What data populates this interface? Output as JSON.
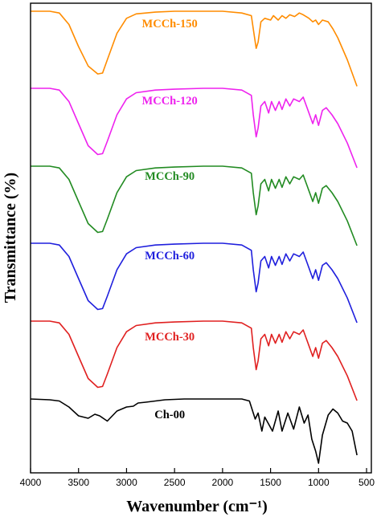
{
  "chart_data": {
    "type": "line",
    "xlabel": "Wavenumber (cm⁻¹)",
    "ylabel": "Transmittance (%)",
    "xlim": [
      4000,
      450
    ],
    "x_reversed": true,
    "y_ticks_shown": false,
    "grid": false,
    "legend": "inline labels next to curves",
    "x_ticks": [
      4000,
      3500,
      3000,
      2500,
      2000,
      1500,
      1000,
      500
    ],
    "x_tick_labels": [
      "4000",
      "3500",
      "3000",
      "2500",
      "2000",
      "1500",
      "1000",
      "500"
    ],
    "series": [
      {
        "name": "MCCh-150",
        "color": "#ff8c00",
        "label_x": 2550,
        "points": [
          [
            4000,
            0
          ],
          [
            3800,
            0
          ],
          [
            3700,
            -0.02
          ],
          [
            3600,
            -0.15
          ],
          [
            3500,
            -0.4
          ],
          [
            3400,
            -0.62
          ],
          [
            3300,
            -0.71
          ],
          [
            3250,
            -0.7
          ],
          [
            3200,
            -0.55
          ],
          [
            3100,
            -0.25
          ],
          [
            3000,
            -0.08
          ],
          [
            2900,
            -0.03
          ],
          [
            2700,
            -0.01
          ],
          [
            2500,
            0
          ],
          [
            2200,
            0
          ],
          [
            2000,
            0
          ],
          [
            1800,
            -0.02
          ],
          [
            1700,
            -0.05
          ],
          [
            1680,
            -0.2
          ],
          [
            1650,
            -0.42
          ],
          [
            1630,
            -0.35
          ],
          [
            1600,
            -0.12
          ],
          [
            1560,
            -0.08
          ],
          [
            1500,
            -0.1
          ],
          [
            1470,
            -0.05
          ],
          [
            1420,
            -0.1
          ],
          [
            1380,
            -0.05
          ],
          [
            1340,
            -0.08
          ],
          [
            1300,
            -0.04
          ],
          [
            1250,
            -0.06
          ],
          [
            1200,
            -0.02
          ],
          [
            1160,
            -0.04
          ],
          [
            1100,
            -0.08
          ],
          [
            1060,
            -0.12
          ],
          [
            1030,
            -0.1
          ],
          [
            1000,
            -0.15
          ],
          [
            960,
            -0.1
          ],
          [
            900,
            -0.12
          ],
          [
            850,
            -0.2
          ],
          [
            800,
            -0.3
          ],
          [
            700,
            -0.55
          ],
          [
            600,
            -0.85
          ]
        ]
      },
      {
        "name": "MCCh-120",
        "color": "#ee22ee",
        "label_x": 2550,
        "points": [
          [
            4000,
            0
          ],
          [
            3800,
            0
          ],
          [
            3700,
            -0.02
          ],
          [
            3600,
            -0.15
          ],
          [
            3500,
            -0.4
          ],
          [
            3400,
            -0.65
          ],
          [
            3300,
            -0.75
          ],
          [
            3250,
            -0.74
          ],
          [
            3200,
            -0.6
          ],
          [
            3100,
            -0.3
          ],
          [
            3000,
            -0.12
          ],
          [
            2900,
            -0.05
          ],
          [
            2700,
            -0.02
          ],
          [
            2500,
            -0.01
          ],
          [
            2200,
            0
          ],
          [
            2000,
            0
          ],
          [
            1800,
            -0.02
          ],
          [
            1700,
            -0.08
          ],
          [
            1680,
            -0.3
          ],
          [
            1650,
            -0.55
          ],
          [
            1630,
            -0.45
          ],
          [
            1600,
            -0.2
          ],
          [
            1560,
            -0.15
          ],
          [
            1520,
            -0.28
          ],
          [
            1490,
            -0.15
          ],
          [
            1450,
            -0.25
          ],
          [
            1410,
            -0.15
          ],
          [
            1380,
            -0.24
          ],
          [
            1340,
            -0.12
          ],
          [
            1300,
            -0.2
          ],
          [
            1260,
            -0.12
          ],
          [
            1200,
            -0.15
          ],
          [
            1160,
            -0.1
          ],
          [
            1100,
            -0.28
          ],
          [
            1060,
            -0.4
          ],
          [
            1030,
            -0.3
          ],
          [
            1000,
            -0.42
          ],
          [
            960,
            -0.25
          ],
          [
            920,
            -0.22
          ],
          [
            860,
            -0.3
          ],
          [
            800,
            -0.4
          ],
          [
            700,
            -0.62
          ],
          [
            600,
            -0.9
          ]
        ]
      },
      {
        "name": "MCCh-90",
        "color": "#228b22",
        "label_x": 2550,
        "points": [
          [
            4000,
            0
          ],
          [
            3800,
            0
          ],
          [
            3700,
            -0.02
          ],
          [
            3600,
            -0.15
          ],
          [
            3500,
            -0.4
          ],
          [
            3400,
            -0.65
          ],
          [
            3300,
            -0.75
          ],
          [
            3250,
            -0.74
          ],
          [
            3200,
            -0.6
          ],
          [
            3100,
            -0.3
          ],
          [
            3000,
            -0.12
          ],
          [
            2900,
            -0.05
          ],
          [
            2700,
            -0.02
          ],
          [
            2500,
            -0.01
          ],
          [
            2200,
            0
          ],
          [
            2000,
            0
          ],
          [
            1800,
            -0.02
          ],
          [
            1700,
            -0.08
          ],
          [
            1680,
            -0.3
          ],
          [
            1650,
            -0.55
          ],
          [
            1630,
            -0.45
          ],
          [
            1600,
            -0.2
          ],
          [
            1560,
            -0.15
          ],
          [
            1520,
            -0.28
          ],
          [
            1490,
            -0.15
          ],
          [
            1450,
            -0.25
          ],
          [
            1410,
            -0.15
          ],
          [
            1380,
            -0.24
          ],
          [
            1340,
            -0.12
          ],
          [
            1300,
            -0.2
          ],
          [
            1260,
            -0.12
          ],
          [
            1200,
            -0.15
          ],
          [
            1160,
            -0.1
          ],
          [
            1100,
            -0.28
          ],
          [
            1060,
            -0.4
          ],
          [
            1030,
            -0.3
          ],
          [
            1000,
            -0.42
          ],
          [
            960,
            -0.25
          ],
          [
            920,
            -0.22
          ],
          [
            860,
            -0.3
          ],
          [
            800,
            -0.4
          ],
          [
            700,
            -0.62
          ],
          [
            600,
            -0.9
          ]
        ]
      },
      {
        "name": "MCCh-60",
        "color": "#1f1fdd",
        "label_x": 2550,
        "points": [
          [
            4000,
            0
          ],
          [
            3800,
            0
          ],
          [
            3700,
            -0.02
          ],
          [
            3600,
            -0.15
          ],
          [
            3500,
            -0.4
          ],
          [
            3400,
            -0.65
          ],
          [
            3300,
            -0.75
          ],
          [
            3250,
            -0.74
          ],
          [
            3200,
            -0.6
          ],
          [
            3100,
            -0.3
          ],
          [
            3000,
            -0.12
          ],
          [
            2900,
            -0.05
          ],
          [
            2700,
            -0.02
          ],
          [
            2500,
            -0.01
          ],
          [
            2200,
            0
          ],
          [
            2000,
            0
          ],
          [
            1800,
            -0.02
          ],
          [
            1700,
            -0.08
          ],
          [
            1680,
            -0.3
          ],
          [
            1650,
            -0.55
          ],
          [
            1630,
            -0.45
          ],
          [
            1600,
            -0.2
          ],
          [
            1560,
            -0.15
          ],
          [
            1520,
            -0.28
          ],
          [
            1490,
            -0.15
          ],
          [
            1450,
            -0.25
          ],
          [
            1410,
            -0.15
          ],
          [
            1380,
            -0.24
          ],
          [
            1340,
            -0.12
          ],
          [
            1300,
            -0.2
          ],
          [
            1260,
            -0.12
          ],
          [
            1200,
            -0.15
          ],
          [
            1160,
            -0.1
          ],
          [
            1100,
            -0.28
          ],
          [
            1060,
            -0.4
          ],
          [
            1030,
            -0.3
          ],
          [
            1000,
            -0.42
          ],
          [
            960,
            -0.25
          ],
          [
            920,
            -0.22
          ],
          [
            860,
            -0.3
          ],
          [
            800,
            -0.4
          ],
          [
            700,
            -0.62
          ],
          [
            600,
            -0.9
          ]
        ]
      },
      {
        "name": "MCCh-30",
        "color": "#e02020",
        "label_x": 2550,
        "points": [
          [
            4000,
            0
          ],
          [
            3800,
            0
          ],
          [
            3700,
            -0.02
          ],
          [
            3600,
            -0.15
          ],
          [
            3500,
            -0.4
          ],
          [
            3400,
            -0.65
          ],
          [
            3300,
            -0.75
          ],
          [
            3250,
            -0.74
          ],
          [
            3200,
            -0.6
          ],
          [
            3100,
            -0.3
          ],
          [
            3000,
            -0.12
          ],
          [
            2900,
            -0.05
          ],
          [
            2700,
            -0.02
          ],
          [
            2500,
            -0.01
          ],
          [
            2200,
            0
          ],
          [
            2000,
            0
          ],
          [
            1800,
            -0.02
          ],
          [
            1700,
            -0.08
          ],
          [
            1680,
            -0.3
          ],
          [
            1650,
            -0.55
          ],
          [
            1630,
            -0.45
          ],
          [
            1600,
            -0.2
          ],
          [
            1560,
            -0.15
          ],
          [
            1520,
            -0.28
          ],
          [
            1490,
            -0.15
          ],
          [
            1450,
            -0.25
          ],
          [
            1410,
            -0.15
          ],
          [
            1380,
            -0.24
          ],
          [
            1340,
            -0.12
          ],
          [
            1300,
            -0.2
          ],
          [
            1260,
            -0.12
          ],
          [
            1200,
            -0.15
          ],
          [
            1160,
            -0.1
          ],
          [
            1100,
            -0.28
          ],
          [
            1060,
            -0.4
          ],
          [
            1030,
            -0.3
          ],
          [
            1000,
            -0.42
          ],
          [
            960,
            -0.25
          ],
          [
            920,
            -0.22
          ],
          [
            860,
            -0.3
          ],
          [
            800,
            -0.4
          ],
          [
            700,
            -0.62
          ],
          [
            600,
            -0.9
          ]
        ]
      },
      {
        "name": "Ch-00",
        "color": "#000000",
        "label_x": 2550,
        "points": [
          [
            4000,
            0
          ],
          [
            3800,
            -0.02
          ],
          [
            3700,
            -0.05
          ],
          [
            3600,
            -0.2
          ],
          [
            3500,
            -0.42
          ],
          [
            3400,
            -0.48
          ],
          [
            3330,
            -0.38
          ],
          [
            3280,
            -0.42
          ],
          [
            3200,
            -0.55
          ],
          [
            3100,
            -0.3
          ],
          [
            3000,
            -0.2
          ],
          [
            2930,
            -0.18
          ],
          [
            2880,
            -0.1
          ],
          [
            2800,
            -0.08
          ],
          [
            2600,
            -0.02
          ],
          [
            2400,
            0
          ],
          [
            2200,
            0
          ],
          [
            2000,
            0
          ],
          [
            1800,
            0
          ],
          [
            1720,
            -0.05
          ],
          [
            1660,
            -0.5
          ],
          [
            1630,
            -0.35
          ],
          [
            1590,
            -0.8
          ],
          [
            1560,
            -0.45
          ],
          [
            1480,
            -0.8
          ],
          [
            1420,
            -0.3
          ],
          [
            1380,
            -0.8
          ],
          [
            1320,
            -0.35
          ],
          [
            1260,
            -0.75
          ],
          [
            1200,
            -0.2
          ],
          [
            1150,
            -0.6
          ],
          [
            1110,
            -0.4
          ],
          [
            1070,
            -1.0
          ],
          [
            1030,
            -1.3
          ],
          [
            1000,
            -1.6
          ],
          [
            960,
            -0.9
          ],
          [
            900,
            -0.4
          ],
          [
            850,
            -0.25
          ],
          [
            800,
            -0.35
          ],
          [
            750,
            -0.55
          ],
          [
            700,
            -0.6
          ],
          [
            650,
            -0.8
          ],
          [
            600,
            -1.4
          ]
        ]
      }
    ]
  }
}
